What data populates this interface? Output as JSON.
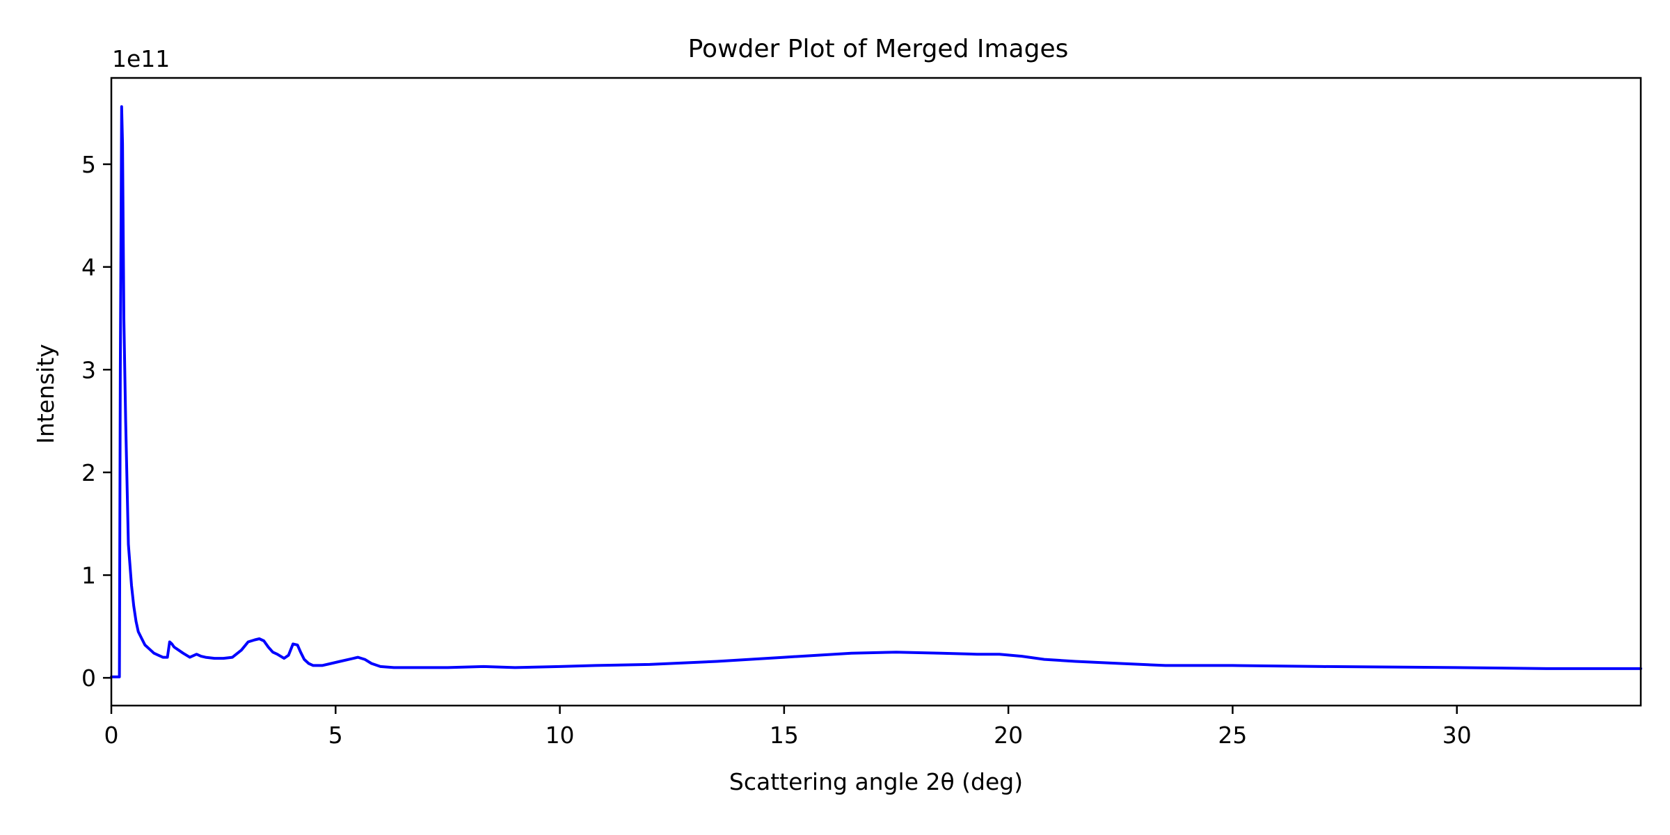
{
  "chart_data": {
    "type": "line",
    "title": "Powder Plot of Merged Images",
    "xlabel": "Scattering angle 2θ (deg)",
    "ylabel": "Intensity",
    "y_offset_label": "1e11",
    "y_scale": 100000000000,
    "xlim": [
      0,
      34.1
    ],
    "ylim": [
      -0.27,
      5.84
    ],
    "xticks": [
      0,
      5,
      10,
      15,
      20,
      25,
      30
    ],
    "xtick_labels": [
      "0",
      "5",
      "10",
      "15",
      "20",
      "25",
      "30"
    ],
    "yticks": [
      0,
      1,
      2,
      3,
      4,
      5
    ],
    "ytick_labels": [
      "0",
      "1",
      "2",
      "3",
      "4",
      "5"
    ],
    "grid": false,
    "legend": "none",
    "series": [
      {
        "color": "#0000ff",
        "x": [
          0.0,
          0.12,
          0.18,
          0.2,
          0.23,
          0.25,
          0.28,
          0.32,
          0.38,
          0.45,
          0.5,
          0.55,
          0.6,
          0.68,
          0.75,
          0.85,
          0.95,
          1.05,
          1.15,
          1.25,
          1.3,
          1.35,
          1.4,
          1.5,
          1.6,
          1.75,
          1.9,
          2.0,
          2.1,
          2.3,
          2.5,
          2.7,
          2.9,
          3.05,
          3.2,
          3.3,
          3.4,
          3.5,
          3.6,
          3.7,
          3.85,
          3.95,
          4.05,
          4.15,
          4.22,
          4.3,
          4.4,
          4.5,
          4.7,
          4.9,
          5.1,
          5.3,
          5.5,
          5.65,
          5.8,
          6.0,
          6.3,
          6.7,
          7.5,
          8.3,
          9.0,
          10.0,
          10.8,
          12.0,
          13.5,
          15.0,
          16.5,
          17.5,
          18.5,
          19.3,
          19.8,
          20.3,
          20.8,
          21.5,
          22.5,
          23.5,
          24.2,
          25.0,
          27.0,
          30.0,
          32.0,
          34.1
        ],
        "y": [
          0.01,
          0.01,
          0.01,
          3.0,
          5.56,
          5.2,
          3.5,
          2.5,
          1.3,
          0.9,
          0.7,
          0.55,
          0.45,
          0.38,
          0.32,
          0.28,
          0.24,
          0.22,
          0.2,
          0.2,
          0.35,
          0.33,
          0.3,
          0.27,
          0.24,
          0.2,
          0.23,
          0.21,
          0.2,
          0.19,
          0.19,
          0.2,
          0.27,
          0.35,
          0.37,
          0.38,
          0.36,
          0.3,
          0.25,
          0.23,
          0.19,
          0.22,
          0.33,
          0.32,
          0.25,
          0.18,
          0.14,
          0.12,
          0.12,
          0.14,
          0.16,
          0.18,
          0.2,
          0.18,
          0.14,
          0.11,
          0.1,
          0.1,
          0.1,
          0.11,
          0.1,
          0.11,
          0.12,
          0.13,
          0.16,
          0.2,
          0.24,
          0.25,
          0.24,
          0.23,
          0.23,
          0.21,
          0.18,
          0.16,
          0.14,
          0.12,
          0.12,
          0.12,
          0.11,
          0.1,
          0.09,
          0.09
        ]
      }
    ]
  }
}
